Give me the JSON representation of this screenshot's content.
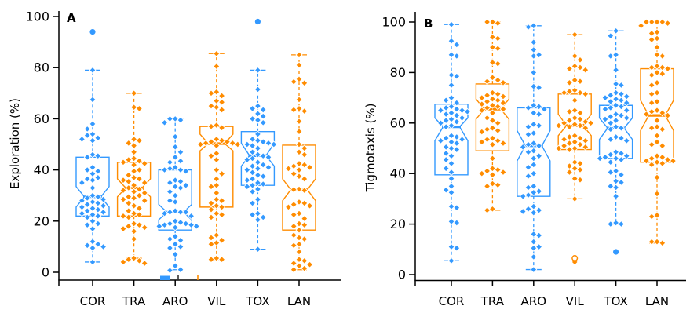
{
  "palette": {
    "blue": "#3399FF",
    "orange": "#FF8C00",
    "dark": "#333333",
    "axis": "#000000"
  },
  "chart_data": {
    "type": "boxplot-beeswarm",
    "categories": [
      "COR",
      "TRA",
      "ARO",
      "VIL",
      "TOX",
      "LAN"
    ],
    "yticks": [
      0,
      20,
      40,
      60,
      80,
      100
    ],
    "ylim": [
      0,
      100
    ],
    "panels": [
      {
        "label": "A",
        "ylabel": "Exploration (%)",
        "groups": [
          {
            "name": "COR",
            "color": "blue",
            "box": {
              "q1": 22,
              "median": 29.5,
              "q3": 45,
              "notchLow": 25.5,
              "notchHigh": 33.5,
              "whiskerLow": 4,
              "whiskerHigh": 79
            },
            "points": [
              79,
              67.5,
              58,
              56,
              54,
              53.5,
              52.5,
              52,
              51.5,
              46,
              45.5,
              45,
              41,
              40,
              39.5,
              38.5,
              37,
              36.5,
              36,
              35,
              33,
              30,
              29.5,
              29,
              28.5,
              28,
              27.5,
              27,
              26.5,
              26,
              25.5,
              25,
              24.5,
              24,
              23.5,
              23,
              22.5,
              22,
              21.5,
              20,
              19,
              18.5,
              17,
              12,
              11,
              10.5,
              10,
              9.5,
              4
            ],
            "special": [
              {
                "v": 94,
                "shape": "circle"
              }
            ]
          },
          {
            "name": "TRA",
            "color": "orange",
            "box": {
              "q1": 22,
              "median": 33,
              "q3": 43,
              "notchLow": 29.5,
              "notchHigh": 36.5,
              "whiskerLow": 5.5,
              "whiskerHigh": 70
            },
            "points": [
              70,
              64.5,
              64,
              52,
              51.5,
              50.5,
              49.5,
              47,
              44.5,
              44,
              43.5,
              43,
              42.5,
              42,
              40,
              39.5,
              38,
              37,
              36.5,
              36,
              35.5,
              35,
              34,
              33,
              32.5,
              32,
              31.5,
              31,
              30,
              29.5,
              29,
              28.5,
              28,
              27,
              26,
              25,
              24,
              23,
              22.5,
              22,
              21.5,
              19,
              18.5,
              18,
              17.5,
              17,
              16,
              13,
              5.5,
              5,
              4.5,
              4,
              3.5
            ],
            "special": []
          },
          {
            "name": "ARO",
            "color": "blue",
            "box": {
              "q1": 16.5,
              "median": 23.5,
              "q3": 40,
              "notchLow": 20.5,
              "notchHigh": 26.5,
              "whiskerLow": 1,
              "whiskerHigh": 60
            },
            "points": [
              60,
              60,
              59.5,
              58.5,
              53,
              49,
              47,
              45,
              43.5,
              43,
              41,
              40.5,
              40,
              40,
              39.5,
              36,
              35.5,
              35,
              34,
              33.5,
              33,
              31.5,
              30,
              28,
              27.5,
              24,
              23.5,
              23.5,
              23.5,
              23,
              22,
              20,
              19.5,
              19,
              19,
              18.5,
              18.5,
              18,
              18,
              17.5,
              14,
              13,
              12.5,
              11,
              10,
              9.5,
              7,
              2.5,
              1,
              0.7
            ],
            "special": []
          },
          {
            "name": "VIL",
            "color": "orange",
            "box": {
              "q1": 25.5,
              "median": 50.3,
              "q3": 57,
              "notchLow": 47.5,
              "notchHigh": 54,
              "whiskerLow": 5,
              "whiskerHigh": 85.5
            },
            "points": [
              85.5,
              80.5,
              70.5,
              70,
              69,
              67,
              66.5,
              65,
              64.5,
              63.5,
              57.5,
              57,
              56.5,
              52,
              51.5,
              51,
              51,
              50.5,
              50.5,
              50,
              50,
              49.5,
              46.5,
              45.5,
              44,
              40,
              38.5,
              36.5,
              34,
              33.5,
              31,
              28.5,
              28,
              27,
              26,
              25.5,
              24.5,
              23,
              22.5,
              21.5,
              14.5,
              13.5,
              12.5,
              11.5,
              11,
              5.5,
              5,
              5
            ],
            "special": []
          },
          {
            "name": "TOX",
            "color": "blue",
            "box": {
              "q1": 34,
              "median": 45.6,
              "q3": 55,
              "notchLow": 41.5,
              "notchHigh": 50.5,
              "whiskerLow": 9,
              "whiskerHigh": 79
            },
            "points": [
              79,
              71.5,
              65,
              64,
              63.5,
              62,
              61,
              60,
              59.5,
              58.5,
              54,
              52,
              51.5,
              51,
              50.5,
              50,
              50,
              49.5,
              48.5,
              47,
              46,
              45.5,
              45,
              44.5,
              44,
              43,
              42,
              41.5,
              41,
              40.5,
              40,
              39,
              38,
              37.5,
              36.5,
              36,
              35,
              34.5,
              34,
              33.5,
              32.5,
              31.5,
              28.5,
              27,
              23,
              22.5,
              21.5,
              20.5,
              9
            ],
            "special": [
              {
                "v": 98,
                "shape": "circle"
              }
            ]
          },
          {
            "name": "LAN",
            "color": "orange",
            "box": {
              "q1": 16.5,
              "median": 32.3,
              "q3": 49.7,
              "notchLow": 28,
              "notchHigh": 36.5,
              "whiskerLow": 1,
              "whiskerHigh": 85
            },
            "points": [
              85,
              81,
              75.5,
              74.5,
              74,
              67.5,
              64,
              63.5,
              63,
              59,
              55,
              50,
              48.5,
              47,
              46,
              42.5,
              42,
              41.5,
              41,
              40.5,
              40,
              38.5,
              37.5,
              36.5,
              32.5,
              32.3,
              32,
              27.5,
              27,
              26.5,
              26,
              25.5,
              23,
              22.5,
              21,
              19,
              18.5,
              18,
              16.5,
              14.5,
              13.5,
              13,
              11,
              10.5,
              8,
              5,
              4.5,
              3.5,
              3,
              2.5,
              1.5,
              1
            ],
            "special": []
          }
        ],
        "artifacts": [
          {
            "type": "rect",
            "x": 204,
            "y": 351.5,
            "w": 13,
            "h": 5.5,
            "color": "blue"
          },
          {
            "type": "tick",
            "x": 227,
            "color": "dark"
          },
          {
            "type": "tick",
            "x": 252,
            "color": "orange"
          }
        ]
      },
      {
        "label": "B",
        "ylabel": "Tigmotaxis (%)",
        "groups": [
          {
            "name": "COR",
            "color": "blue",
            "box": {
              "q1": 39.5,
              "median": 58.5,
              "q3": 67.5,
              "notchLow": 53,
              "notchHigh": 62,
              "whiskerLow": 5.5,
              "whiskerHigh": 99
            },
            "points": [
              99,
              92.5,
              91,
              87,
              86.5,
              79,
              78.5,
              75,
              70,
              69,
              68,
              66.5,
              66,
              65.5,
              65,
              65,
              64.5,
              64,
              63.5,
              63,
              62,
              61.5,
              61,
              60.5,
              60,
              59,
              58.5,
              55,
              54.5,
              54,
              53.5,
              53,
              52.5,
              52,
              50.5,
              50,
              49.5,
              48,
              47,
              45.5,
              44,
              42,
              40.5,
              38,
              35,
              33.5,
              32.5,
              27,
              26.5,
              21,
              20.5,
              11,
              10.5,
              5.5
            ],
            "special": []
          },
          {
            "name": "TRA",
            "color": "orange",
            "box": {
              "q1": 49,
              "median": 65.5,
              "q3": 75.5,
              "notchLow": 61.5,
              "notchHigh": 69.5,
              "whiskerLow": 25.5,
              "whiskerHigh": 100
            },
            "points": [
              100,
              100,
              99.5,
              94,
              93.5,
              90,
              89.5,
              84,
              83.5,
              78,
              77,
              76.5,
              76,
              72,
              71.5,
              71,
              70.5,
              70,
              69.5,
              69,
              68.5,
              68,
              67.5,
              67,
              66.5,
              66,
              65.5,
              65,
              64,
              62,
              61,
              60,
              58,
              57.5,
              57,
              56.5,
              54,
              53.5,
              53,
              52.5,
              52,
              51.5,
              46,
              42,
              41.5,
              41,
              40.5,
              40,
              39.5,
              36,
              35.5,
              35,
              26,
              25.5
            ],
            "special": []
          },
          {
            "name": "ARO",
            "color": "blue",
            "box": {
              "q1": 31,
              "median": 51,
              "q3": 66,
              "notchLow": 45,
              "notchHigh": 57,
              "whiskerLow": 2,
              "whiskerHigh": 98.5
            },
            "points": [
              98.5,
              98,
              92,
              89,
              87,
              86.5,
              80,
              74.5,
              74,
              67,
              66.5,
              66,
              65.5,
              64,
              63.5,
              59.5,
              59,
              58.5,
              56,
              55.5,
              52,
              51.5,
              51,
              50.5,
              49,
              48.5,
              47,
              46,
              43.5,
              42.5,
              40,
              39,
              35,
              34.5,
              33,
              32.5,
              31.5,
              31,
              27,
              26,
              25.5,
              25,
              24.5,
              16,
              15.5,
              13,
              11,
              10.5,
              7,
              2
            ],
            "special": []
          },
          {
            "name": "VIL",
            "color": "orange",
            "box": {
              "q1": 49.5,
              "median": 59,
              "q3": 71.5,
              "notchLow": 55,
              "notchHigh": 63.5,
              "whiskerLow": 30,
              "whiskerHigh": 95
            },
            "points": [
              95,
              86.5,
              85,
              82.5,
              82,
              81.5,
              81,
              77,
              76.5,
              76,
              73,
              72.5,
              72,
              72,
              71.5,
              69,
              65,
              64.5,
              64,
              62,
              61.5,
              61,
              60.5,
              60,
              60,
              59.5,
              59,
              59,
              58.5,
              58,
              55,
              54.5,
              54,
              53.5,
              53,
              52.5,
              52,
              51.5,
              51,
              50.5,
              50,
              50,
              49.5,
              44.5,
              44,
              43,
              42,
              41.5,
              40.5,
              38,
              37.5,
              30,
              5
            ],
            "special": [
              {
                "v": 6.5,
                "shape": "open-circle"
              }
            ]
          },
          {
            "name": "TOX",
            "color": "blue",
            "box": {
              "q1": 46,
              "median": 58,
              "q3": 67,
              "notchLow": 53.5,
              "notchHigh": 62,
              "whiskerLow": 20,
              "whiskerHigh": 96.5
            },
            "points": [
              96.5,
              94.5,
              87,
              86.5,
              81,
              75.5,
              75,
              72,
              71.5,
              71,
              70.5,
              70,
              69.5,
              69,
              68.5,
              68,
              67,
              66.5,
              66,
              65.5,
              65,
              63.5,
              63,
              62.5,
              62,
              61.5,
              61,
              60,
              58.5,
              58,
              57.5,
              54.5,
              54,
              53.5,
              53,
              48.5,
              48,
              47.5,
              47,
              46.5,
              46,
              46,
              45.5,
              44.5,
              41,
              40.5,
              39.5,
              37,
              36.5,
              35,
              34.5,
              31,
              20.5,
              20,
              20
            ],
            "special": [
              {
                "v": 9,
                "shape": "circle"
              }
            ]
          },
          {
            "name": "LAN",
            "color": "orange",
            "box": {
              "q1": 44.5,
              "median": 63,
              "q3": 81.5,
              "notchLow": 57,
              "notchHigh": 69,
              "whiskerLow": 12.5,
              "whiskerHigh": 100
            },
            "points": [
              100,
              100,
              100,
              100,
              99.5,
              98.5,
              96,
              95.5,
              93.5,
              93,
              90,
              87,
              86.5,
              82.5,
              82,
              82,
              81.5,
              80,
              79.5,
              79,
              76,
              75,
              72,
              71.5,
              68.5,
              68,
              65,
              64.5,
              64,
              63.5,
              63,
              61,
              58.5,
              58,
              57.5,
              55,
              52.5,
              51.5,
              51,
              47,
              46.5,
              46,
              45.5,
              45,
              45,
              44.5,
              44,
              43.5,
              38.5,
              32,
              23.5,
              23,
              13,
              13,
              12.5
            ],
            "special": []
          }
        ],
        "artifacts": []
      }
    ]
  }
}
